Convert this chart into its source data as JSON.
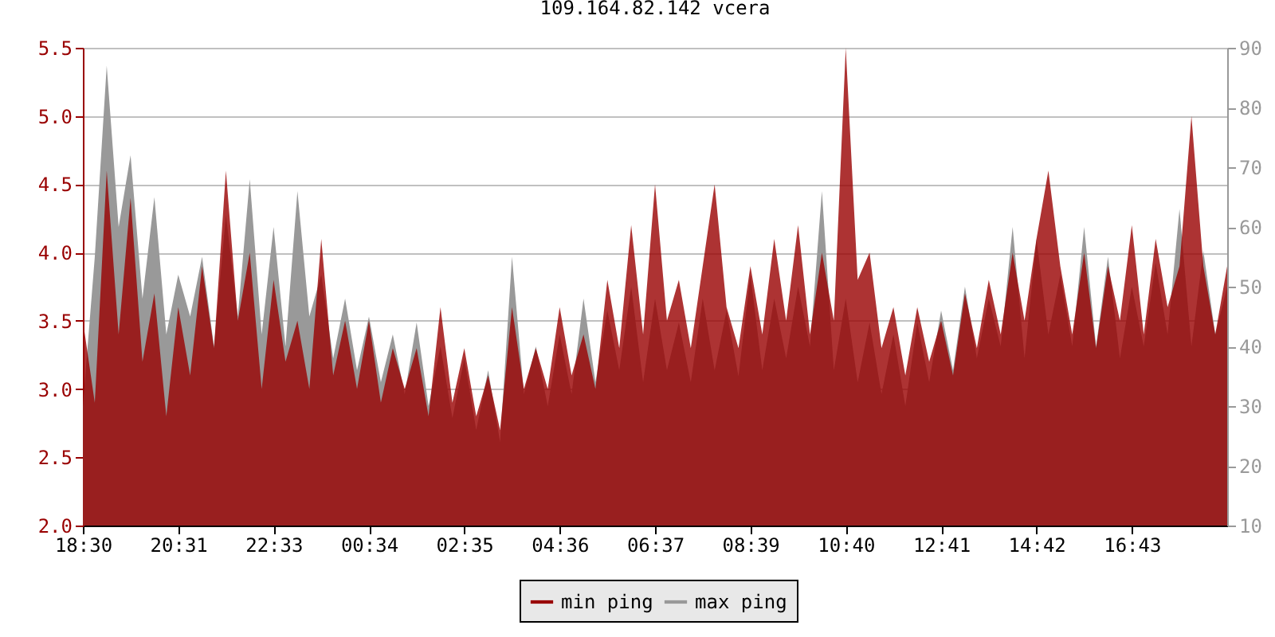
{
  "chart_data": {
    "type": "area",
    "title": "109.164.82.142 vcera",
    "categories": [
      "18:30",
      null,
      null,
      null,
      null,
      null,
      null,
      null,
      "20:31",
      null,
      null,
      null,
      null,
      null,
      null,
      null,
      "22:33",
      null,
      null,
      null,
      null,
      null,
      null,
      null,
      "00:34",
      null,
      null,
      null,
      null,
      null,
      null,
      null,
      "02:35",
      null,
      null,
      null,
      null,
      null,
      null,
      null,
      "04:36",
      null,
      null,
      null,
      null,
      null,
      null,
      null,
      "06:37",
      null,
      null,
      null,
      null,
      null,
      null,
      null,
      "08:39",
      null,
      null,
      null,
      null,
      null,
      null,
      null,
      "10:40",
      null,
      null,
      null,
      null,
      null,
      null,
      null,
      "12:41",
      null,
      null,
      null,
      null,
      null,
      null,
      null,
      "14:42",
      null,
      null,
      null,
      null,
      null,
      null,
      null,
      "16:43",
      null,
      null,
      null,
      null,
      null,
      null,
      null,
      null
    ],
    "series": [
      {
        "name": "min ping",
        "color": "#990000",
        "values": [
          3.5,
          2.9,
          4.6,
          3.4,
          4.4,
          3.2,
          3.7,
          2.8,
          3.6,
          3.1,
          3.9,
          3.3,
          4.6,
          3.5,
          4.0,
          3.0,
          3.8,
          3.2,
          3.5,
          3.0,
          4.1,
          3.1,
          3.5,
          3.0,
          3.5,
          2.9,
          3.3,
          3.0,
          3.3,
          2.8,
          3.6,
          2.9,
          3.3,
          2.8,
          3.1,
          2.7,
          3.6,
          3.0,
          3.3,
          3.0,
          3.6,
          3.1,
          3.4,
          3.0,
          3.8,
          3.3,
          4.2,
          3.4,
          4.5,
          3.5,
          3.8,
          3.3,
          3.9,
          4.5,
          3.6,
          3.3,
          3.9,
          3.4,
          4.1,
          3.5,
          4.2,
          3.4,
          4.0,
          3.5,
          5.5,
          3.8,
          4.0,
          3.3,
          3.6,
          3.1,
          3.6,
          3.2,
          3.5,
          3.1,
          3.7,
          3.3,
          3.8,
          3.4,
          4.0,
          3.5,
          4.1,
          4.6,
          3.9,
          3.4,
          4.0,
          3.3,
          3.9,
          3.5,
          4.2,
          3.4,
          4.1,
          3.6,
          3.9,
          5.0,
          3.9,
          3.4,
          3.9
        ]
      },
      {
        "name": "max ping",
        "color": "#999999",
        "axis": "y2",
        "values": [
          30,
          55,
          87,
          60,
          72,
          48,
          65,
          42,
          52,
          45,
          55,
          40,
          62,
          45,
          68,
          42,
          60,
          40,
          66,
          45,
          52,
          38,
          48,
          36,
          45,
          34,
          42,
          32,
          44,
          30,
          40,
          28,
          38,
          26,
          36,
          24,
          55,
          32,
          40,
          30,
          42,
          32,
          48,
          34,
          46,
          36,
          50,
          34,
          48,
          36,
          44,
          34,
          48,
          36,
          46,
          35,
          52,
          36,
          48,
          38,
          50,
          40,
          66,
          36,
          48,
          34,
          44,
          32,
          42,
          30,
          44,
          34,
          46,
          36,
          50,
          38,
          48,
          40,
          60,
          38,
          58,
          42,
          52,
          40,
          60,
          40,
          55,
          38,
          50,
          40,
          54,
          42,
          63,
          40,
          56,
          42,
          50
        ]
      }
    ],
    "ylim": [
      2,
      5.5
    ],
    "yticks": [
      {
        "value": 2,
        "label": "2.0"
      },
      2.5,
      {
        "value": 3,
        "label": "3.0"
      },
      3.5,
      {
        "value": 4,
        "label": "4.0"
      },
      4.5,
      {
        "value": 5,
        "label": "5.0"
      },
      5.5
    ],
    "y2lim": [
      10,
      90
    ],
    "y2ticks": [
      10,
      20,
      30,
      40,
      50,
      60,
      70,
      80,
      90
    ],
    "grid": "y",
    "legend": "bottom"
  }
}
